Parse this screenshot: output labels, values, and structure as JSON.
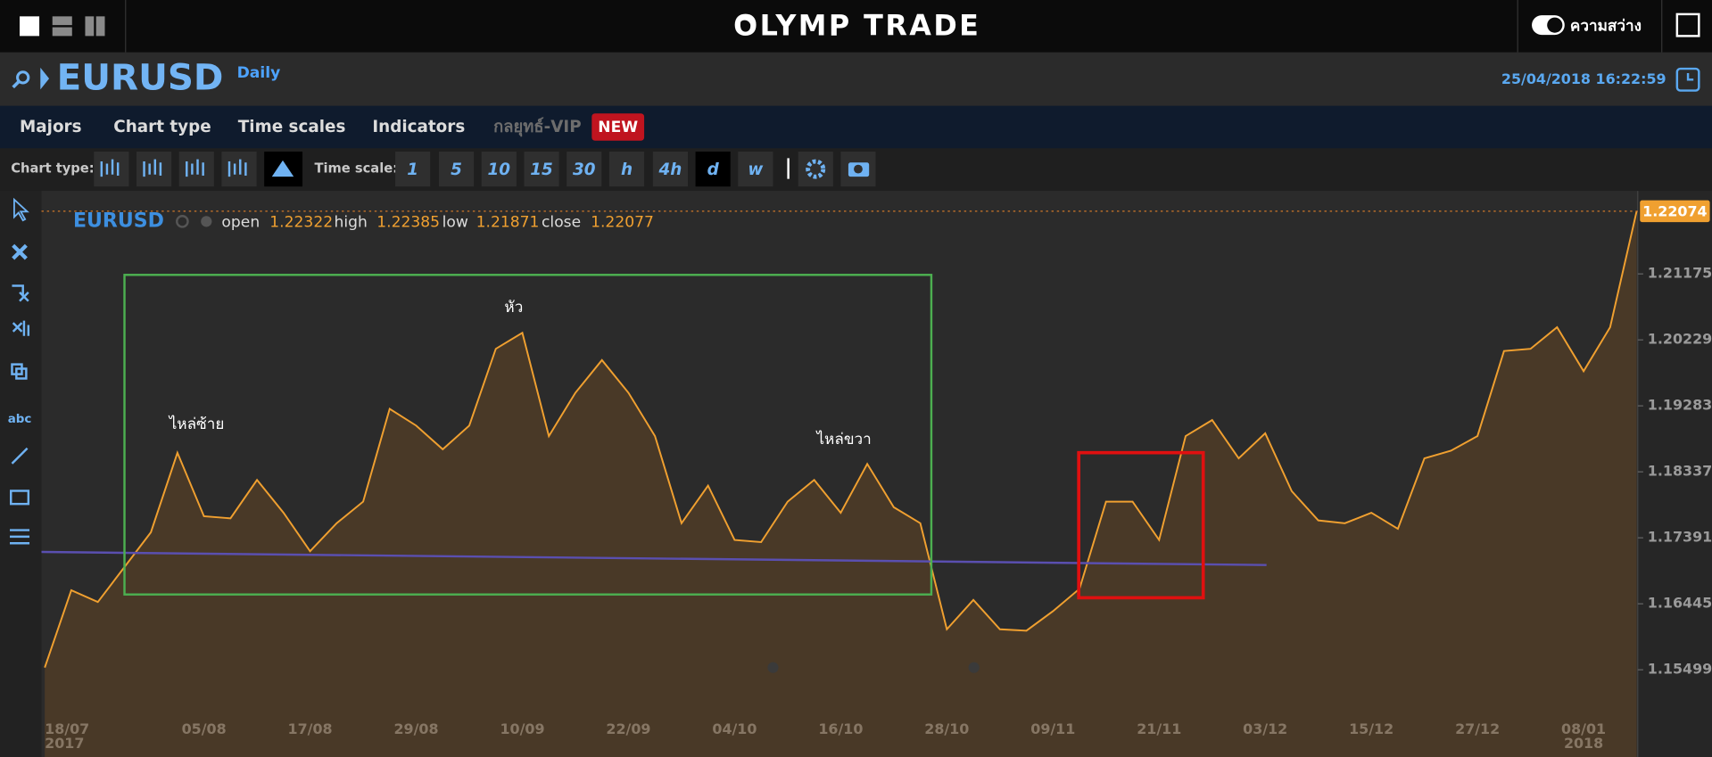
{
  "header": {
    "logo": "OLYMP TRADE",
    "brightness": "ความสว่าง"
  },
  "symbol_bar": {
    "symbol": "EURUSD",
    "period": "Daily",
    "datetime": "25/04/2018 16:22:59"
  },
  "menu": {
    "items": [
      "Majors",
      "Chart type",
      "Time scales",
      "Indicators",
      "กลยุทธ์-VIP"
    ],
    "badge": "NEW"
  },
  "toolbar": {
    "chart_type_label": "Chart type:",
    "time_scale_label": "Time scale:",
    "time_scales": [
      "1",
      "5",
      "10",
      "15",
      "30",
      "h",
      "4h",
      "d",
      "w"
    ]
  },
  "left_tools": {
    "text_tool": "abc"
  },
  "chart_data": {
    "type": "area",
    "symbol": "EURUSD",
    "ohlc": {
      "labels": [
        "open",
        "high",
        "low",
        "close"
      ],
      "values": [
        1.22322,
        1.22385,
        1.21871,
        1.22077
      ]
    },
    "annotations": [
      "ไหล่ซ้าย",
      "หัว",
      "ไหล่ขวา"
    ],
    "color": "#f0a030",
    "categories": [
      "18/07",
      null,
      null,
      null,
      null,
      null,
      "05/08",
      null,
      null,
      null,
      "17/08",
      null,
      null,
      null,
      "29/08",
      null,
      null,
      null,
      "10/09",
      null,
      null,
      null,
      "22/09",
      null,
      null,
      null,
      "04/10",
      null,
      null,
      null,
      "16/10",
      null,
      null,
      null,
      "28/10",
      null,
      null,
      null,
      "09/11",
      null,
      null,
      null,
      "21/11",
      null,
      null,
      null,
      "03/12",
      null,
      null,
      null,
      "15/12",
      null,
      null,
      null,
      "27/12",
      null,
      null,
      null,
      "08/01",
      null,
      null
    ],
    "x_year_labels": [
      {
        "index": 0,
        "label": "2017"
      },
      {
        "index": 58,
        "label": "2018"
      }
    ],
    "values": [
      1.1553,
      1.1664,
      1.1647,
      1.1697,
      1.1747,
      1.1861,
      1.177,
      1.1767,
      1.1822,
      1.1775,
      1.172,
      1.176,
      1.1791,
      1.1924,
      1.19,
      1.1866,
      1.19,
      1.201,
      1.2033,
      1.1885,
      1.1947,
      1.1994,
      1.1947,
      1.1885,
      1.176,
      1.1814,
      1.1736,
      1.1733,
      1.1791,
      1.1822,
      1.1775,
      1.1845,
      1.1783,
      1.176,
      1.1608,
      1.165,
      1.1608,
      1.1606,
      1.1634,
      1.1666,
      1.1791,
      1.1791,
      1.1736,
      1.1885,
      1.1908,
      1.1853,
      1.1889,
      1.1806,
      1.1764,
      1.176,
      1.1775,
      1.1752,
      1.1853,
      1.1864,
      1.1885,
      1.2007,
      1.201,
      1.2041,
      1.1978,
      1.2041,
      1.22074
    ],
    "ylim": [
      1.1478,
      1.22287
    ],
    "yticks": [
      1.15499,
      1.16445,
      1.17391,
      1.18337,
      1.19283,
      1.20229,
      1.21175
    ]
  }
}
